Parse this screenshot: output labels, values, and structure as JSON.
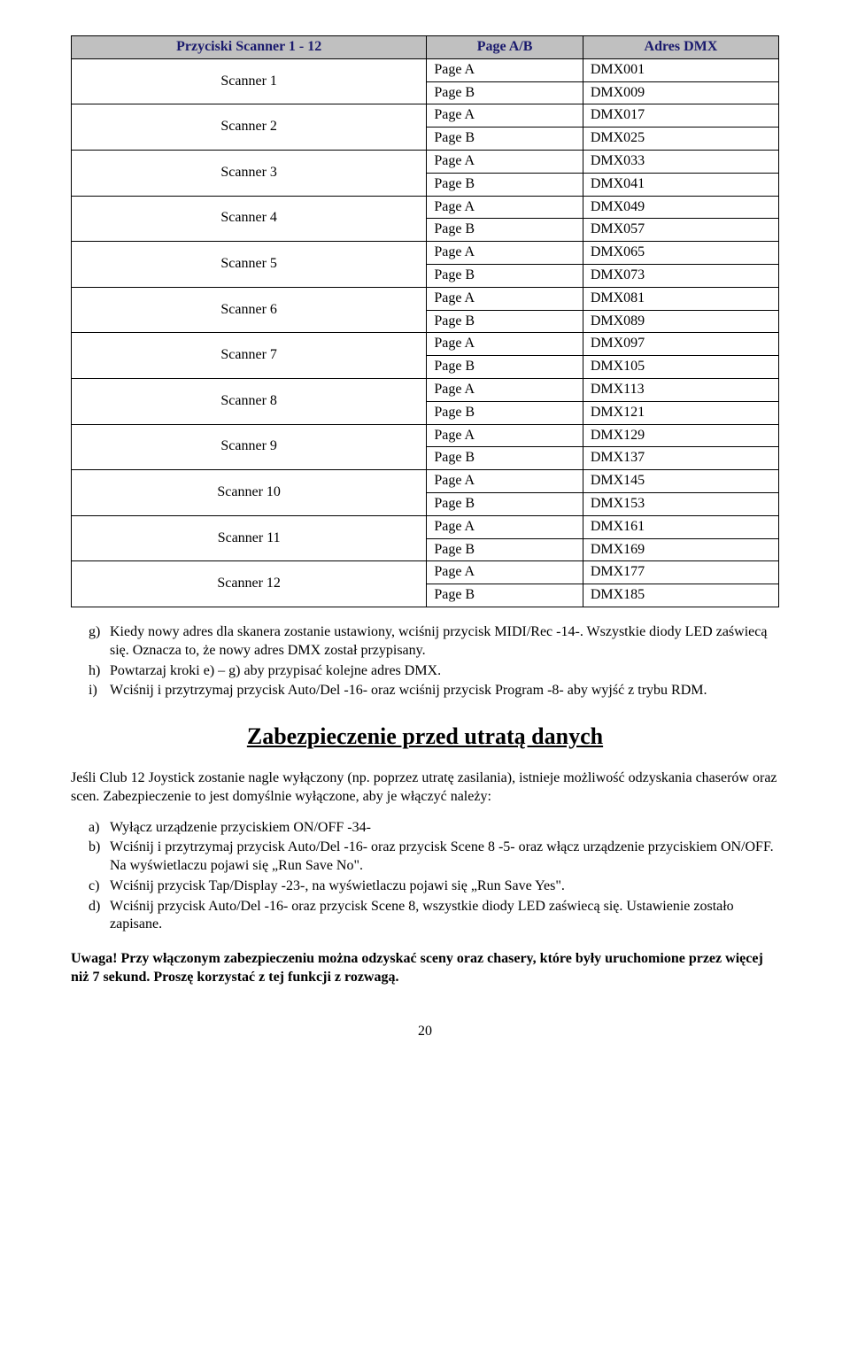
{
  "table": {
    "headers": [
      "Przyciski Scanner 1 - 12",
      "Page A/B",
      "Adres DMX"
    ],
    "header_bg": "#c0c0c0",
    "header_text_color": "#1a1a6d",
    "rows": [
      {
        "scanner": "Scanner 1",
        "pages": [
          {
            "p": "Page A",
            "d": "DMX001"
          },
          {
            "p": "Page B",
            "d": "DMX009"
          }
        ]
      },
      {
        "scanner": "Scanner 2",
        "pages": [
          {
            "p": "Page A",
            "d": "DMX017"
          },
          {
            "p": "Page B",
            "d": "DMX025"
          }
        ]
      },
      {
        "scanner": "Scanner 3",
        "pages": [
          {
            "p": "Page A",
            "d": "DMX033"
          },
          {
            "p": "Page B",
            "d": "DMX041"
          }
        ]
      },
      {
        "scanner": "Scanner 4",
        "pages": [
          {
            "p": "Page A",
            "d": "DMX049"
          },
          {
            "p": "Page B",
            "d": "DMX057"
          }
        ]
      },
      {
        "scanner": "Scanner 5",
        "pages": [
          {
            "p": "Page A",
            "d": "DMX065"
          },
          {
            "p": "Page B",
            "d": "DMX073"
          }
        ]
      },
      {
        "scanner": "Scanner 6",
        "pages": [
          {
            "p": "Page A",
            "d": "DMX081"
          },
          {
            "p": "Page B",
            "d": "DMX089"
          }
        ]
      },
      {
        "scanner": "Scanner 7",
        "pages": [
          {
            "p": "Page A",
            "d": "DMX097"
          },
          {
            "p": "Page B",
            "d": "DMX105"
          }
        ]
      },
      {
        "scanner": "Scanner 8",
        "pages": [
          {
            "p": "Page A",
            "d": "DMX113"
          },
          {
            "p": "Page B",
            "d": "DMX121"
          }
        ]
      },
      {
        "scanner": "Scanner 9",
        "pages": [
          {
            "p": "Page A",
            "d": "DMX129"
          },
          {
            "p": "Page B",
            "d": "DMX137"
          }
        ]
      },
      {
        "scanner": "Scanner 10",
        "pages": [
          {
            "p": "Page A",
            "d": "DMX145"
          },
          {
            "p": "Page B",
            "d": "DMX153"
          }
        ]
      },
      {
        "scanner": "Scanner 11",
        "pages": [
          {
            "p": "Page A",
            "d": "DMX161"
          },
          {
            "p": "Page B",
            "d": "DMX169"
          }
        ]
      },
      {
        "scanner": "Scanner 12",
        "pages": [
          {
            "p": "Page A",
            "d": "DMX177"
          },
          {
            "p": "Page B",
            "d": "DMX185"
          }
        ]
      }
    ]
  },
  "list1": [
    {
      "m": "g)",
      "t": "Kiedy nowy adres dla skanera zostanie ustawiony, wciśnij przycisk MIDI/Rec -14-. Wszystkie diody LED zaświecą się. Oznacza to, że nowy adres DMX został przypisany."
    },
    {
      "m": "h)",
      "t": "Powtarzaj kroki e) – g) aby przypisać kolejne adres DMX."
    },
    {
      "m": "i)",
      "t": "Wciśnij i przytrzymaj przycisk Auto/Del -16- oraz wciśnij przycisk Program -8- aby wyjść z trybu RDM."
    }
  ],
  "section_title": "Zabezpieczenie przed utratą danych",
  "para1": "Jeśli Club 12 Joystick zostanie nagle wyłączony (np. poprzez utratę zasilania), istnieje możliwość odzyskania chaserów oraz scen. Zabezpieczenie to jest domyślnie wyłączone, aby je włączyć należy:",
  "list2": [
    {
      "m": "a)",
      "t": "Wyłącz urządzenie przyciskiem ON/OFF -34-"
    },
    {
      "m": "b)",
      "t": "Wciśnij i przytrzymaj przycisk Auto/Del -16- oraz przycisk Scene 8 -5- oraz włącz urządzenie przyciskiem ON/OFF. Na wyświetlaczu pojawi się „Run Save No\"."
    },
    {
      "m": "c)",
      "t": "Wciśnij przycisk Tap/Display -23-, na wyświetlaczu pojawi się „Run Save Yes\"."
    },
    {
      "m": "d)",
      "t": "Wciśnij przycisk Auto/Del -16- oraz przycisk Scene 8, wszystkie diody LED zaświecą się. Ustawienie zostało zapisane."
    }
  ],
  "warning": "Uwaga! Przy włączonym zabezpieczeniu można odzyskać sceny oraz chasery, które były uruchomione przez więcej niż 7 sekund. Proszę korzystać z tej funkcji z rozwagą.",
  "page_number": "20"
}
